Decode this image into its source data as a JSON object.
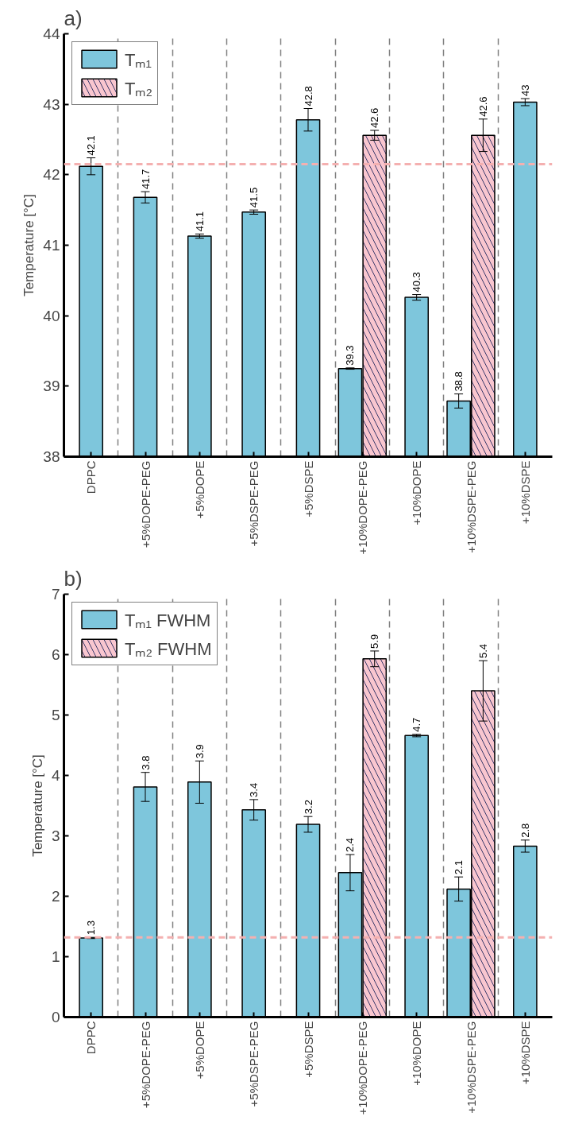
{
  "chart_data": [
    {
      "type": "bar",
      "title": "a)",
      "ylabel": "Temperature [°C]",
      "categories": [
        "DPPC",
        "+5%DOPE-PEG",
        "+5%DOPE",
        "+5%DSPE-PEG",
        "+5%DSPE",
        "+10%DOPE-PEG",
        "+10%DOPE",
        "+10%DSPE-PEG",
        "+10%DSPE"
      ],
      "series": [
        {
          "name": "Tₘ₁",
          "color": "#7ec6dc",
          "values": [
            42.12,
            41.68,
            41.13,
            41.47,
            42.78,
            39.25,
            40.26,
            38.79,
            43.03
          ],
          "errors": [
            0.12,
            0.08,
            0.03,
            0.03,
            0.16,
            0.01,
            0.04,
            0.1,
            0.05
          ],
          "value_labels": [
            "42.1",
            "41.7",
            "41.1",
            "41.5",
            "42.8",
            "39.3",
            "40.3",
            "38.8",
            "43"
          ]
        },
        {
          "name": "Tₘ₂",
          "color": "#f9c6cf",
          "values": [
            null,
            null,
            null,
            null,
            null,
            42.56,
            null,
            42.56,
            null
          ],
          "errors": [
            null,
            null,
            null,
            null,
            null,
            0.07,
            null,
            0.23,
            null
          ],
          "value_labels": [
            null,
            null,
            null,
            null,
            null,
            "42.6",
            null,
            "42.6",
            null
          ]
        }
      ],
      "ylim": [
        38,
        44
      ],
      "yticks": [
        38,
        39,
        40,
        41,
        42,
        43,
        44
      ],
      "grid": "x",
      "legend": "top left",
      "ref_lines": [
        {
          "axis": "y",
          "value": 42.15,
          "color": "#f4b0b0",
          "line_style": "dashed"
        }
      ]
    },
    {
      "type": "bar",
      "title": "b)",
      "ylabel": "Temperature [°C]",
      "categories": [
        "DPPC",
        "+5%DOPE-PEG",
        "+5%DOPE",
        "+5%DSPE-PEG",
        "+5%DSPE",
        "+10%DOPE-PEG",
        "+10%DOPE",
        "+10%DSPE-PEG",
        "+10%DSPE"
      ],
      "series": [
        {
          "name": "Tₘ₁ FWHM",
          "color": "#7ec6dc",
          "values": [
            1.31,
            3.81,
            3.89,
            3.43,
            3.19,
            2.39,
            4.66,
            2.12,
            2.83
          ],
          "errors": [
            0.01,
            0.24,
            0.35,
            0.17,
            0.13,
            0.3,
            0.02,
            0.2,
            0.1
          ],
          "value_labels": [
            "1.3",
            "3.8",
            "3.9",
            "3.4",
            "3.2",
            "2.4",
            "4.7",
            "2.1",
            "2.8"
          ]
        },
        {
          "name": "Tₘ₂ FWHM",
          "color": "#f9c6cf",
          "values": [
            null,
            null,
            null,
            null,
            null,
            5.93,
            null,
            5.4,
            null
          ],
          "errors": [
            null,
            null,
            null,
            null,
            null,
            0.13,
            null,
            0.5,
            null
          ],
          "value_labels": [
            null,
            null,
            null,
            null,
            null,
            "5.9",
            null,
            "5.4",
            null
          ]
        }
      ],
      "ylim": [
        0,
        7
      ],
      "yticks": [
        0,
        1,
        2,
        3,
        4,
        5,
        6,
        7
      ],
      "grid": "x",
      "legend": "top left",
      "ref_lines": [
        {
          "axis": "y",
          "value": 1.32,
          "color": "#f4b0b0",
          "line_style": "dashed"
        }
      ]
    }
  ]
}
